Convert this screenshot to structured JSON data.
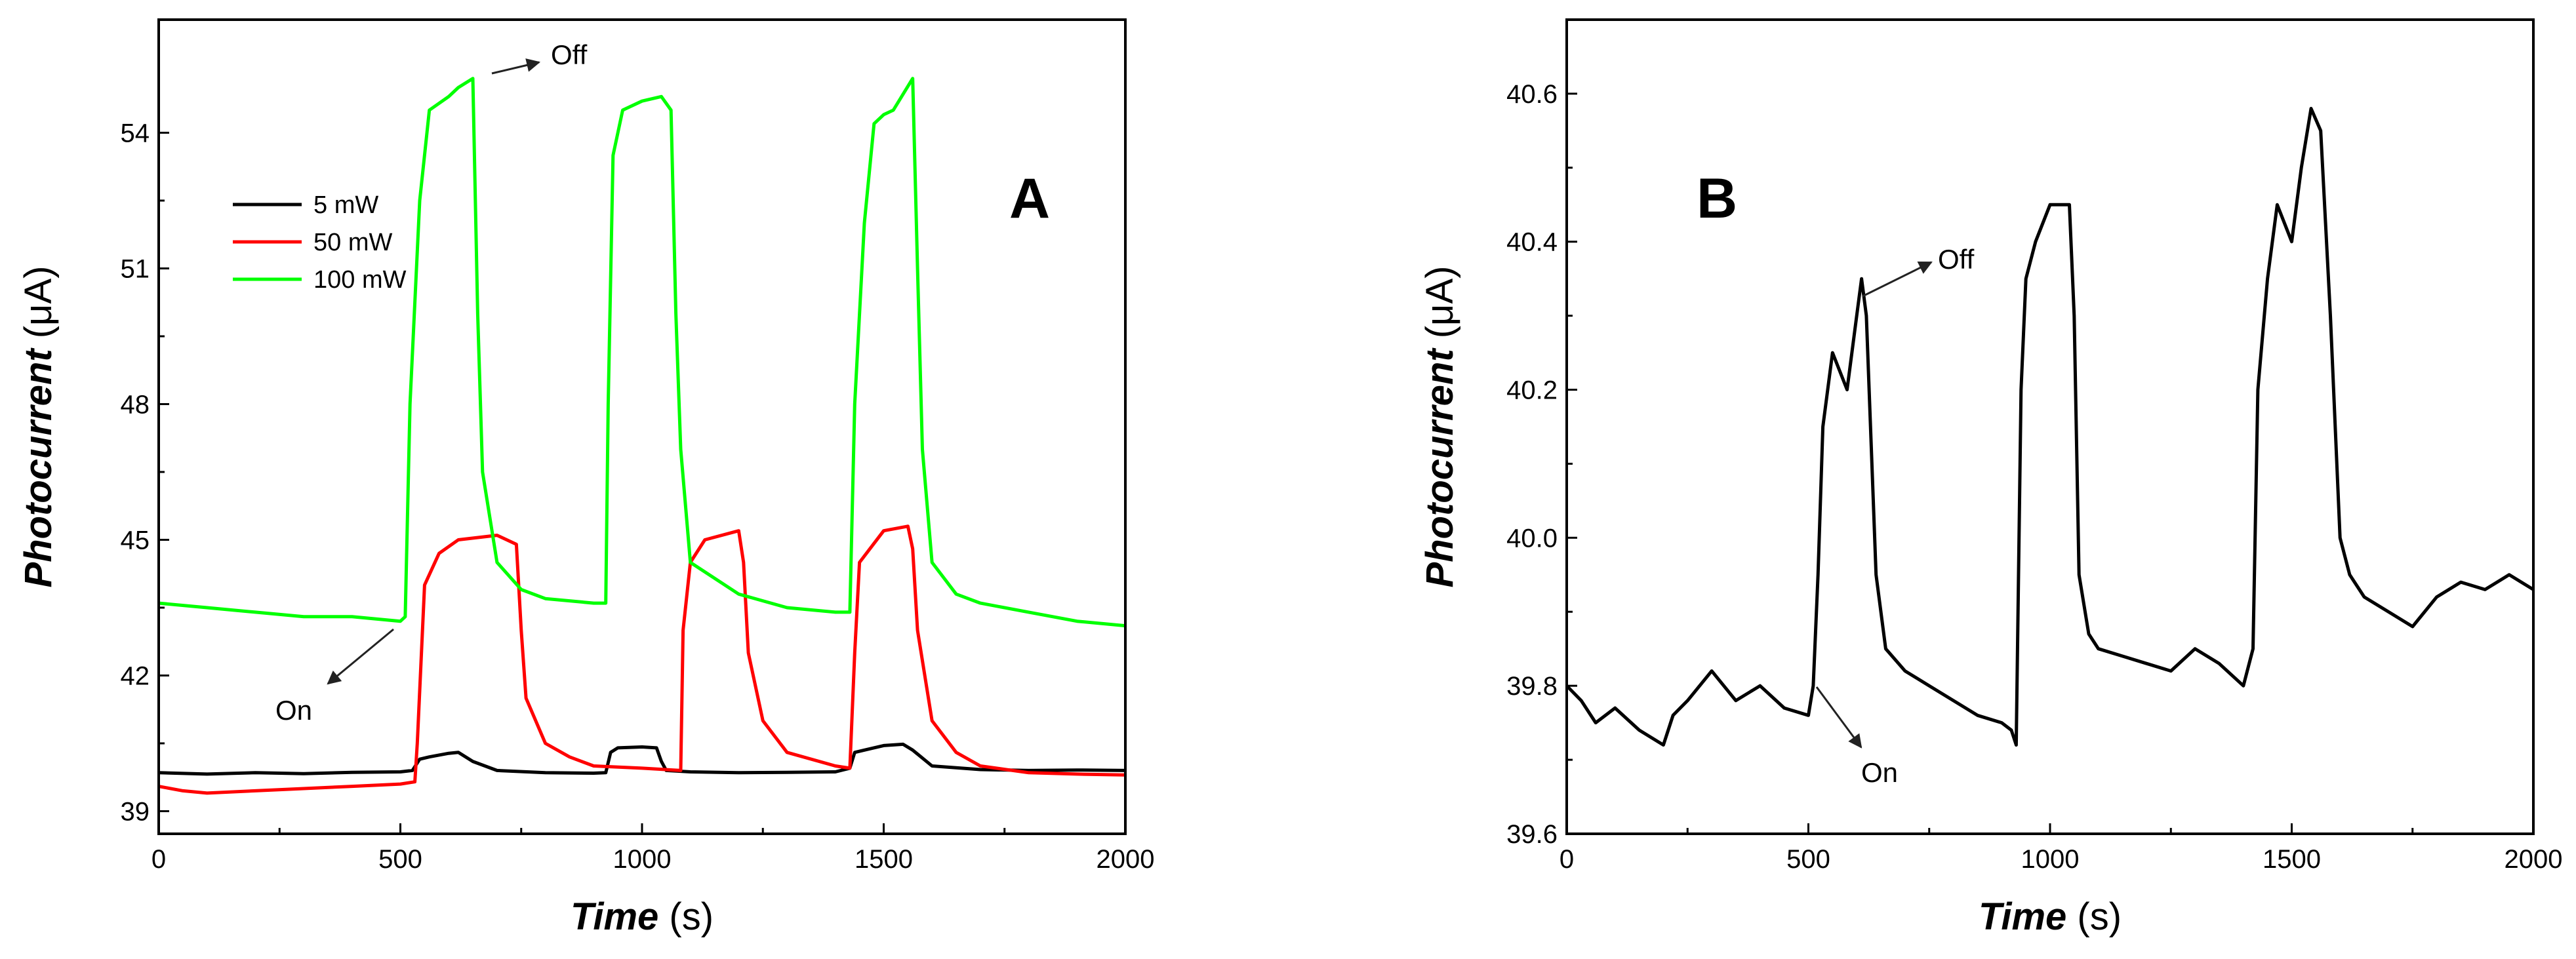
{
  "chart_data": [
    {
      "panel": "A",
      "type": "line",
      "title": "",
      "panel_label": "A",
      "xlabel": "Time",
      "xlabel_unit": " (s)",
      "ylabel": "Photocurrent",
      "ylabel_unit": " (μA)",
      "xlim": [
        0,
        2000
      ],
      "ylim": [
        38.5,
        56.5
      ],
      "x_ticks": [
        0,
        500,
        1000,
        1500,
        2000
      ],
      "x_tick_labels": [
        "0",
        "500",
        "1000",
        "1500",
        "2000"
      ],
      "y_ticks": [
        39,
        42,
        45,
        48,
        51,
        54
      ],
      "y_tick_labels": [
        "39",
        "42",
        "45",
        "48",
        "51",
        "54"
      ],
      "legend_position": "upper-left",
      "series": [
        {
          "name": "5 mW",
          "color": "#000000",
          "x": [
            0,
            100,
            200,
            300,
            400,
            500,
            525,
            540,
            560,
            600,
            620,
            650,
            700,
            800,
            900,
            925,
            935,
            950,
            1000,
            1030,
            1040,
            1050,
            1100,
            1200,
            1300,
            1400,
            1430,
            1440,
            1460,
            1500,
            1540,
            1560,
            1600,
            1700,
            1800,
            1900,
            2000
          ],
          "values": [
            39.85,
            39.82,
            39.85,
            39.83,
            39.86,
            39.87,
            39.9,
            40.15,
            40.2,
            40.28,
            40.3,
            40.1,
            39.9,
            39.85,
            39.84,
            39.85,
            40.3,
            40.4,
            40.42,
            40.4,
            40.1,
            39.9,
            39.87,
            39.85,
            39.86,
            39.87,
            39.95,
            40.3,
            40.35,
            40.45,
            40.48,
            40.35,
            40.0,
            39.92,
            39.9,
            39.91,
            39.9
          ]
        },
        {
          "name": "50 mW",
          "color": "#ff0000",
          "x": [
            0,
            50,
            100,
            200,
            300,
            400,
            500,
            530,
            535,
            550,
            580,
            620,
            700,
            740,
            750,
            760,
            800,
            850,
            900,
            1000,
            1080,
            1085,
            1100,
            1130,
            1200,
            1210,
            1220,
            1250,
            1300,
            1400,
            1430,
            1440,
            1450,
            1500,
            1550,
            1560,
            1570,
            1600,
            1650,
            1700,
            1800,
            1900,
            2000
          ],
          "values": [
            39.55,
            39.45,
            39.4,
            39.45,
            39.5,
            39.55,
            39.6,
            39.65,
            40.5,
            44.0,
            44.7,
            45.0,
            45.1,
            44.9,
            43.0,
            41.5,
            40.5,
            40.2,
            40.0,
            39.95,
            39.9,
            43.0,
            44.5,
            45.0,
            45.2,
            44.5,
            42.5,
            41.0,
            40.3,
            40.0,
            39.95,
            42.5,
            44.5,
            45.2,
            45.3,
            44.8,
            43.0,
            41.0,
            40.3,
            40.0,
            39.85,
            39.82,
            39.8
          ]
        },
        {
          "name": "100 mW",
          "color": "#00ff00",
          "x": [
            0,
            100,
            200,
            300,
            400,
            500,
            510,
            520,
            540,
            560,
            600,
            620,
            650,
            660,
            670,
            700,
            750,
            800,
            900,
            925,
            930,
            940,
            960,
            1000,
            1040,
            1060,
            1070,
            1080,
            1100,
            1200,
            1300,
            1400,
            1430,
            1440,
            1460,
            1480,
            1500,
            1520,
            1560,
            1570,
            1580,
            1600,
            1650,
            1700,
            1800,
            1900,
            2000
          ],
          "values": [
            43.6,
            43.5,
            43.4,
            43.3,
            43.3,
            43.2,
            43.3,
            48.0,
            52.5,
            54.5,
            54.8,
            55.0,
            55.2,
            50.0,
            46.5,
            44.5,
            43.9,
            43.7,
            43.6,
            43.6,
            48.0,
            53.5,
            54.5,
            54.7,
            54.8,
            54.5,
            50.0,
            47.0,
            44.5,
            43.8,
            43.5,
            43.4,
            43.4,
            48.0,
            52.0,
            54.2,
            54.4,
            54.5,
            55.2,
            51.0,
            47.0,
            44.5,
            43.8,
            43.6,
            43.4,
            43.2,
            43.1
          ]
        }
      ],
      "annotations": [
        {
          "text": "Off",
          "x": 680,
          "y": 55.5
        },
        {
          "text": "On",
          "x": 150,
          "y": 41.2
        }
      ]
    },
    {
      "panel": "B",
      "type": "line",
      "title": "",
      "panel_label": "B",
      "xlabel": "Time",
      "xlabel_unit": " (s)",
      "ylabel": "Photocurrent",
      "ylabel_unit": " (μA)",
      "xlim": [
        0,
        2000
      ],
      "ylim": [
        39.6,
        40.7
      ],
      "x_ticks": [
        0,
        500,
        1000,
        1500,
        2000
      ],
      "x_tick_labels": [
        "0",
        "500",
        "1000",
        "1500",
        "2000"
      ],
      "y_ticks": [
        39.6,
        39.8,
        40.0,
        40.2,
        40.4,
        40.6
      ],
      "y_tick_labels": [
        "39.6",
        "39.8",
        "40.0",
        "40.2",
        "40.4",
        "40.6"
      ],
      "series": [
        {
          "name": "Photocurrent",
          "color": "#000000",
          "x": [
            0,
            30,
            60,
            100,
            150,
            200,
            220,
            250,
            300,
            350,
            400,
            450,
            500,
            510,
            520,
            530,
            550,
            580,
            600,
            610,
            620,
            640,
            660,
            700,
            750,
            800,
            850,
            900,
            920,
            930,
            940,
            950,
            970,
            1000,
            1040,
            1050,
            1060,
            1080,
            1100,
            1150,
            1200,
            1250,
            1300,
            1350,
            1400,
            1420,
            1430,
            1450,
            1470,
            1500,
            1520,
            1540,
            1560,
            1580,
            1600,
            1620,
            1650,
            1700,
            1750,
            1800,
            1850,
            1900,
            1950,
            2000
          ],
          "values": [
            39.8,
            39.78,
            39.75,
            39.77,
            39.74,
            39.72,
            39.76,
            39.78,
            39.82,
            39.78,
            39.8,
            39.77,
            39.76,
            39.8,
            39.95,
            40.15,
            40.25,
            40.2,
            40.3,
            40.35,
            40.3,
            39.95,
            39.85,
            39.82,
            39.8,
            39.78,
            39.76,
            39.75,
            39.74,
            39.72,
            40.2,
            40.35,
            40.4,
            40.45,
            40.45,
            40.3,
            39.95,
            39.87,
            39.85,
            39.84,
            39.83,
            39.82,
            39.85,
            39.83,
            39.8,
            39.85,
            40.2,
            40.35,
            40.45,
            40.4,
            40.5,
            40.58,
            40.55,
            40.3,
            40.0,
            39.95,
            39.92,
            39.9,
            39.88,
            39.92,
            39.94,
            39.93,
            39.95,
            39.93
          ]
        }
      ],
      "annotations": [
        {
          "text": "Off",
          "x": 700,
          "y": 40.37
        },
        {
          "text": "On",
          "x": 630,
          "y": 39.69
        }
      ]
    }
  ]
}
